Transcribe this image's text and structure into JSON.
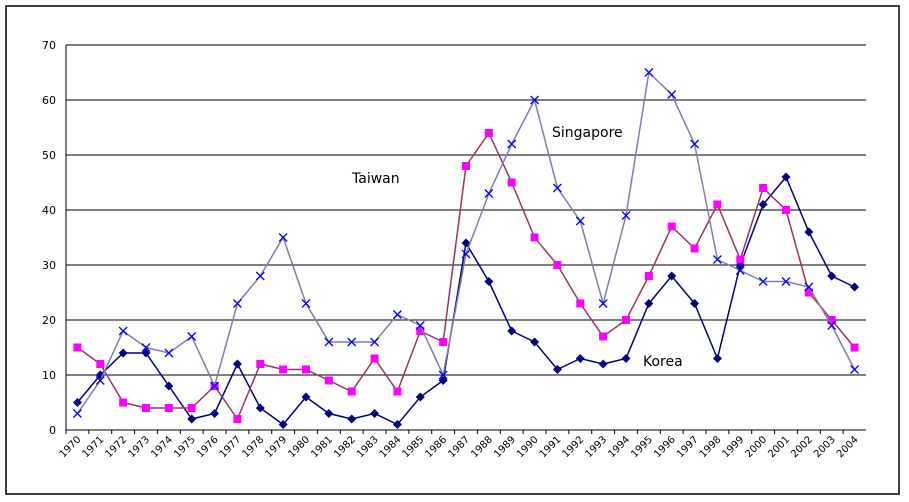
{
  "chart_data": {
    "type": "line",
    "categories": [
      "1970",
      "1971",
      "1972",
      "1973",
      "1974",
      "1975",
      "1976",
      "1977",
      "1978",
      "1979",
      "1980",
      "1981",
      "1982",
      "1983",
      "1984",
      "1985",
      "1986",
      "1987",
      "1988",
      "1989",
      "1990",
      "1991",
      "1992",
      "1993",
      "1994",
      "1995",
      "1996",
      "1997",
      "1998",
      "1999",
      "2000",
      "2001",
      "2002",
      "2003",
      "2004"
    ],
    "series": [
      {
        "name": "Korea",
        "color": "#000080",
        "marker": "diamond",
        "values": [
          5,
          10,
          14,
          14,
          8,
          2,
          3,
          12,
          4,
          1,
          6,
          3,
          2,
          3,
          1,
          6,
          9,
          34,
          27,
          18,
          16,
          11,
          13,
          12,
          13,
          23,
          28,
          23,
          13,
          30,
          41,
          46,
          36,
          28,
          26
        ]
      },
      {
        "name": "Taiwan",
        "color": "#993366",
        "marker_color": "#ff00ff",
        "marker": "square",
        "values": [
          15,
          12,
          5,
          4,
          4,
          4,
          8,
          2,
          12,
          11,
          11,
          9,
          7,
          13,
          7,
          18,
          16,
          48,
          54,
          45,
          35,
          30,
          23,
          17,
          20,
          28,
          37,
          33,
          41,
          31,
          44,
          40,
          25,
          20,
          15
        ]
      },
      {
        "name": "Singapore",
        "color": "#7f7fa8",
        "marker_color": "#0000ff",
        "marker": "x",
        "values": [
          3,
          9,
          18,
          15,
          14,
          17,
          8,
          23,
          28,
          35,
          23,
          16,
          16,
          16,
          21,
          19,
          10,
          32,
          43,
          52,
          60,
          44,
          38,
          23,
          39,
          65,
          61,
          52,
          31,
          29,
          27,
          27,
          26,
          19,
          11
        ]
      }
    ],
    "ylim": [
      0,
      70
    ],
    "yticks": [
      0,
      10,
      20,
      30,
      40,
      50,
      60,
      70
    ],
    "grid": true
  }
}
